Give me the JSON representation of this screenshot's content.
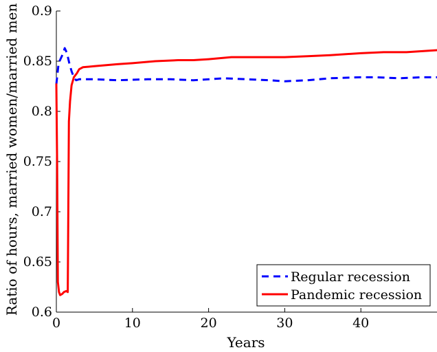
{
  "chart_data": {
    "type": "line",
    "title": "",
    "xlabel": "Years",
    "ylabel": "Ratio of hours, married women/married men",
    "xlim": [
      0,
      50
    ],
    "ylim": [
      0.6,
      0.9
    ],
    "xticks": [
      0,
      10,
      20,
      30,
      40
    ],
    "xtick_labels": [
      "0",
      "10",
      "20",
      "30",
      "40"
    ],
    "yticks": [
      0.6,
      0.65,
      0.7,
      0.75,
      0.8,
      0.85,
      0.9
    ],
    "ytick_labels": [
      "0.6",
      "0.65",
      "0.7",
      "0.75",
      "0.8",
      "0.85",
      "0.9"
    ],
    "grid": false,
    "legend_position": "bottom-right",
    "series": [
      {
        "name": "Regular recession",
        "color": "#0000ff",
        "style": "dashed",
        "x": [
          0,
          0.3,
          0.6,
          0.9,
          1.1,
          1.4,
          1.7,
          2.0,
          2.3,
          2.6,
          3,
          5,
          8,
          12,
          15,
          18,
          22,
          25,
          28,
          30,
          33,
          36,
          40,
          42,
          45,
          48,
          50
        ],
        "y": [
          0.827,
          0.848,
          0.853,
          0.858,
          0.863,
          0.858,
          0.848,
          0.84,
          0.834,
          0.831,
          0.832,
          0.832,
          0.831,
          0.832,
          0.832,
          0.831,
          0.833,
          0.832,
          0.831,
          0.83,
          0.831,
          0.833,
          0.834,
          0.834,
          0.833,
          0.834,
          0.834
        ]
      },
      {
        "name": "Pandemic recession",
        "color": "#ff0000",
        "style": "solid",
        "x": [
          0,
          0.1,
          0.2,
          0.35,
          0.5,
          0.75,
          1.0,
          1.3,
          1.5,
          1.65,
          1.8,
          2.0,
          2.3,
          2.7,
          3.0,
          3.5,
          5,
          8,
          10,
          13,
          16,
          18,
          20,
          23,
          26,
          30,
          33,
          36,
          40,
          43,
          46,
          50
        ],
        "y": [
          0.827,
          0.75,
          0.63,
          0.62,
          0.617,
          0.618,
          0.62,
          0.621,
          0.62,
          0.79,
          0.81,
          0.826,
          0.834,
          0.838,
          0.842,
          0.844,
          0.845,
          0.847,
          0.848,
          0.85,
          0.851,
          0.851,
          0.852,
          0.854,
          0.854,
          0.854,
          0.855,
          0.856,
          0.858,
          0.859,
          0.859,
          0.861
        ]
      }
    ]
  }
}
